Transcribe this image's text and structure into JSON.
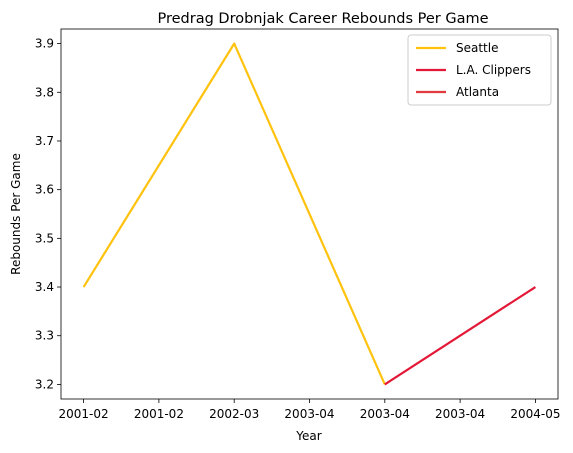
{
  "chart_data": {
    "type": "line",
    "title": "Predrag Drobnjak Career Rebounds Per Game",
    "xlabel": "Year",
    "ylabel": "Rebounds Per Game",
    "x_tick_labels": [
      "2001-02",
      "2001-02",
      "2002-03",
      "2003-04",
      "2003-04",
      "2003-04",
      "2004-05"
    ],
    "x_range": [
      -0.15,
      3.15
    ],
    "ylim": [
      3.17,
      3.93
    ],
    "y_ticks": [
      "3.2",
      "3.3",
      "3.4",
      "3.5",
      "3.6",
      "3.7",
      "3.8",
      "3.9"
    ],
    "grid": false,
    "legend_position": "top-right",
    "series": [
      {
        "name": "Seattle",
        "color": "#FFC20E",
        "points": [
          [
            0,
            3.4
          ],
          [
            1,
            3.9
          ],
          [
            2,
            3.2
          ]
        ]
      },
      {
        "name": "L.A. Clippers",
        "color": "#E31837",
        "points": [
          [
            2,
            3.2
          ],
          [
            3,
            3.4
          ]
        ]
      },
      {
        "name": "Atlanta",
        "color": "#E03A3E",
        "points": []
      }
    ]
  }
}
